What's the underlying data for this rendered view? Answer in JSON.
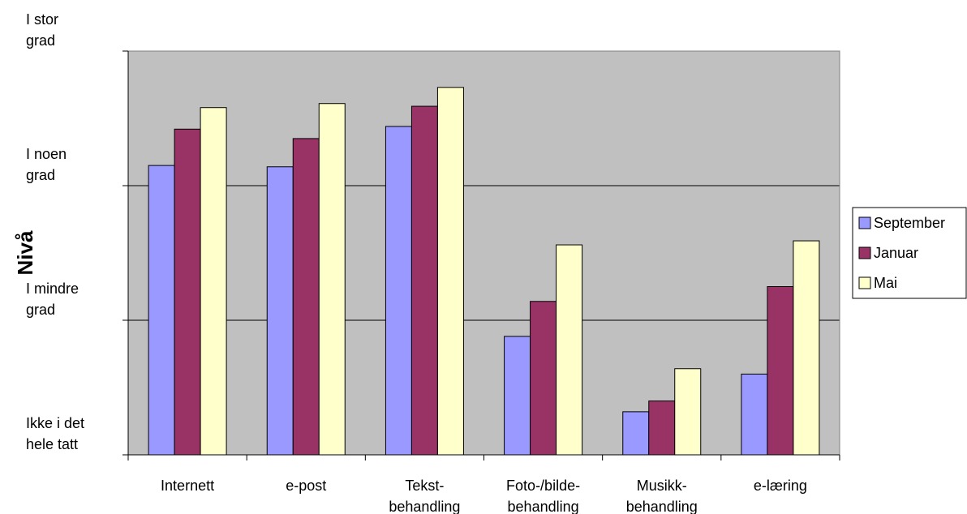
{
  "chart_data": {
    "type": "bar",
    "title": "",
    "xlabel": "",
    "ylabel": "Nivå",
    "ylim": [
      0,
      3
    ],
    "y_tick_labels": [
      [
        "Ikke i det",
        "hele tatt"
      ],
      [
        "I mindre",
        "grad"
      ],
      [
        "I noen",
        "grad"
      ],
      [
        "I stor",
        "grad"
      ]
    ],
    "categories": [
      [
        "Internett"
      ],
      [
        "e-post"
      ],
      [
        "Tekst-",
        "behandling"
      ],
      [
        "Foto-/bilde-",
        "behandling"
      ],
      [
        "Musikk-",
        "behandling"
      ],
      [
        "e-læring"
      ]
    ],
    "series": [
      {
        "name": "September",
        "color": "#9999ff",
        "values": [
          2.15,
          2.14,
          2.44,
          0.88,
          0.32,
          0.6
        ]
      },
      {
        "name": "Januar",
        "color": "#993366",
        "values": [
          2.42,
          2.35,
          2.59,
          1.14,
          0.4,
          1.25
        ]
      },
      {
        "name": "Mai",
        "color": "#ffffcc",
        "values": [
          2.58,
          2.61,
          2.73,
          1.56,
          0.64,
          1.59
        ]
      }
    ],
    "grid": true,
    "plot_background": "#c0c0c0",
    "legend_position": "right"
  }
}
